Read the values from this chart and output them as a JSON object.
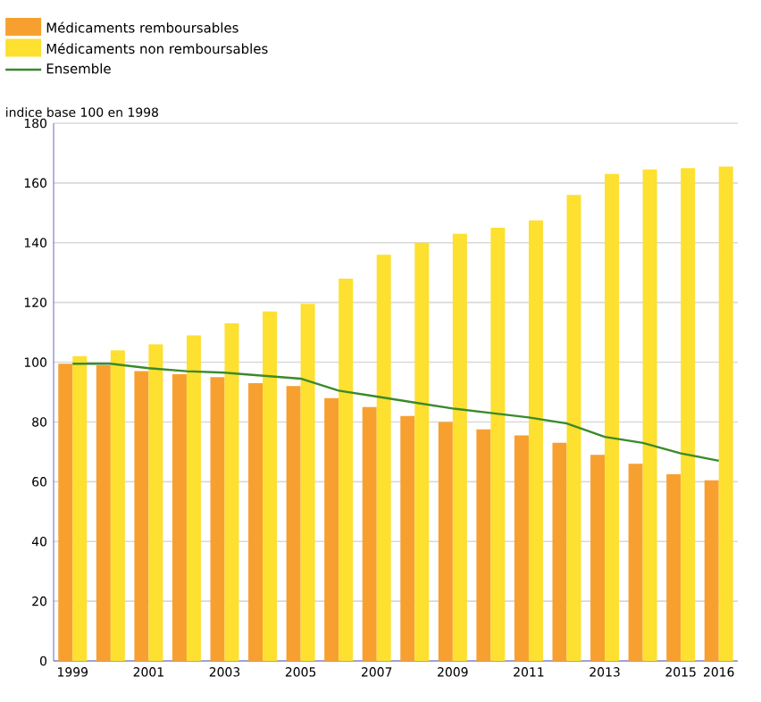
{
  "chart_data": {
    "type": "bar",
    "ylabel": "indice base 100 en 1998",
    "categories": [
      "1999",
      null,
      "2001",
      null,
      "2003",
      null,
      "2005",
      null,
      "2007",
      null,
      "2009",
      null,
      "2011",
      null,
      "2013",
      null,
      "2015",
      "2016"
    ],
    "series": [
      {
        "name": "Médicaments remboursables",
        "color": "#f7a030",
        "values": [
          99.5,
          99,
          97,
          96,
          95,
          93,
          92,
          88,
          85,
          82,
          80,
          77.5,
          75.5,
          73,
          69,
          66,
          62.5,
          60.5
        ]
      },
      {
        "name": "Médicaments non remboursables",
        "color": "#fde030",
        "values": [
          102,
          104,
          106,
          109,
          113,
          117,
          119.5,
          128,
          136,
          140,
          143,
          145,
          147.5,
          156,
          163,
          164.5,
          165,
          165.5
        ]
      },
      {
        "name": "Ensemble",
        "type": "line",
        "color": "#3a8a2a",
        "marker": "none",
        "line_style": "solid",
        "values": [
          99.5,
          99.5,
          98,
          97,
          96.5,
          95.5,
          94.5,
          90.5,
          88.5,
          86.5,
          84.5,
          83,
          81.5,
          79.5,
          75,
          73,
          69.5,
          67
        ]
      }
    ],
    "ylim": [
      0,
      180
    ],
    "yticks": [
      0,
      20,
      40,
      60,
      80,
      100,
      120,
      140,
      160,
      180
    ],
    "grid": "y",
    "legend": "top left"
  }
}
